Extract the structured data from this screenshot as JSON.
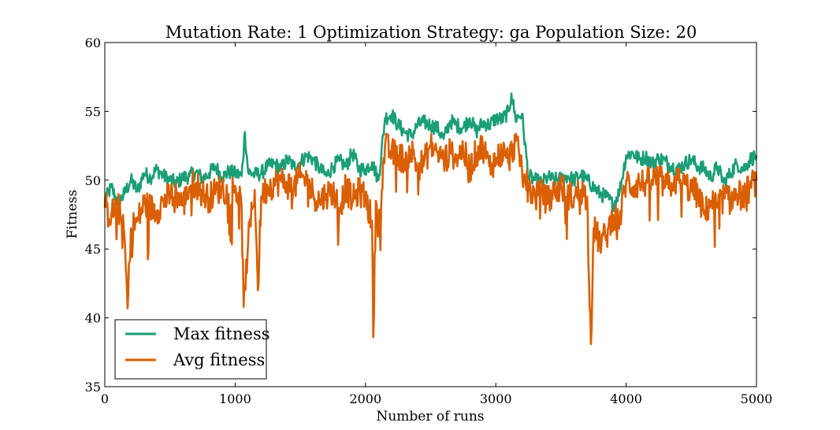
{
  "chart_data": {
    "type": "line",
    "title": "Mutation Rate: 1 Optimization Strategy: ga Population Size: 20",
    "xlabel": "Number of runs",
    "ylabel": "Fitness",
    "xlim": [
      0,
      5000
    ],
    "ylim": [
      35,
      60
    ],
    "xticks": [
      "0",
      "1000",
      "2000",
      "3000",
      "4000",
      "5000"
    ],
    "yticks": [
      "35",
      "40",
      "45",
      "50",
      "55",
      "60"
    ],
    "grid": false,
    "legend_position": "lower-left",
    "series": [
      {
        "name": "Max fitness",
        "color": "#1b9e77",
        "x": [
          0,
          50,
          100,
          150,
          200,
          250,
          300,
          350,
          400,
          450,
          500,
          550,
          600,
          650,
          700,
          750,
          800,
          850,
          900,
          950,
          1000,
          1050,
          1075,
          1100,
          1150,
          1200,
          1250,
          1300,
          1350,
          1400,
          1450,
          1500,
          1550,
          1600,
          1650,
          1700,
          1750,
          1800,
          1850,
          1900,
          1950,
          2000,
          2050,
          2100,
          2150,
          2200,
          2250,
          2300,
          2350,
          2400,
          2450,
          2500,
          2550,
          2600,
          2650,
          2700,
          2750,
          2800,
          2850,
          2900,
          2950,
          3000,
          3050,
          3100,
          3120,
          3150,
          3200,
          3250,
          3300,
          3350,
          3400,
          3450,
          3500,
          3550,
          3600,
          3650,
          3700,
          3750,
          3800,
          3850,
          3900,
          3950,
          4000,
          4050,
          4100,
          4150,
          4200,
          4250,
          4300,
          4350,
          4400,
          4450,
          4500,
          4550,
          4600,
          4650,
          4700,
          4750,
          4800,
          4850,
          4900,
          4950,
          5000
        ],
        "values": [
          48.5,
          49.5,
          48.3,
          49.0,
          50.0,
          49.2,
          50.5,
          50.2,
          50.8,
          50.3,
          50.0,
          49.8,
          50.2,
          50.3,
          50.6,
          50.1,
          50.5,
          51.0,
          50.2,
          50.6,
          50.5,
          50.3,
          53.5,
          50.6,
          50.4,
          50.5,
          51.0,
          51.2,
          50.8,
          51.5,
          51.0,
          51.3,
          51.8,
          51.5,
          50.8,
          50.3,
          51.0,
          51.4,
          51.0,
          52.0,
          50.8,
          50.8,
          51.3,
          50.0,
          54.5,
          54.8,
          54.0,
          53.5,
          53.2,
          54.0,
          54.2,
          54.0,
          53.8,
          53.0,
          54.3,
          54.0,
          53.8,
          54.5,
          53.5,
          54.2,
          54.0,
          54.5,
          54.4,
          55.0,
          56.3,
          54.5,
          54.8,
          50.3,
          50.0,
          49.8,
          50.2,
          50.0,
          50.1,
          50.3,
          50.0,
          50.4,
          50.0,
          49.5,
          49.0,
          48.8,
          48.2,
          49.2,
          51.8,
          52.0,
          51.5,
          51.7,
          51.2,
          51.6,
          51.4,
          51.0,
          50.8,
          51.2,
          51.5,
          51.0,
          50.8,
          50.2,
          51.0,
          49.8,
          50.5,
          51.2,
          50.8,
          51.5,
          51.8
        ]
      },
      {
        "name": "Avg fitness",
        "color": "#d95f02",
        "x": [
          0,
          50,
          100,
          150,
          175,
          200,
          250,
          300,
          350,
          400,
          450,
          500,
          550,
          600,
          650,
          700,
          750,
          800,
          850,
          900,
          950,
          1000,
          1050,
          1065,
          1100,
          1150,
          1175,
          1200,
          1250,
          1300,
          1350,
          1400,
          1450,
          1500,
          1550,
          1600,
          1650,
          1700,
          1750,
          1800,
          1850,
          1900,
          1950,
          2000,
          2050,
          2060,
          2080,
          2100,
          2150,
          2200,
          2250,
          2300,
          2350,
          2400,
          2450,
          2500,
          2550,
          2600,
          2650,
          2700,
          2750,
          2800,
          2850,
          2900,
          2950,
          3000,
          3050,
          3100,
          3150,
          3200,
          3250,
          3300,
          3350,
          3400,
          3450,
          3500,
          3550,
          3600,
          3650,
          3700,
          3730,
          3750,
          3800,
          3850,
          3900,
          3950,
          4000,
          4050,
          4100,
          4150,
          4200,
          4250,
          4300,
          4350,
          4400,
          4450,
          4500,
          4550,
          4600,
          4650,
          4700,
          4750,
          4800,
          4850,
          4900,
          4950,
          5000
        ],
        "values": [
          48.0,
          47.5,
          48.2,
          46.0,
          40.7,
          46.5,
          47.0,
          48.3,
          48.0,
          47.8,
          48.5,
          48.8,
          49.0,
          48.2,
          49.5,
          49.8,
          49.0,
          48.7,
          49.2,
          49.5,
          49.0,
          49.6,
          48.0,
          40.8,
          45.5,
          49.3,
          42.0,
          48.8,
          49.5,
          49.8,
          50.0,
          49.7,
          49.5,
          50.2,
          50.0,
          49.0,
          48.5,
          49.0,
          49.2,
          48.0,
          49.5,
          48.5,
          49.2,
          48.8,
          47.0,
          38.6,
          48.5,
          46.5,
          52.5,
          52.0,
          51.8,
          51.5,
          52.2,
          51.0,
          51.3,
          52.5,
          52.0,
          51.5,
          52.0,
          51.8,
          52.2,
          50.8,
          52.0,
          52.5,
          51.0,
          51.5,
          52.0,
          51.5,
          52.8,
          51.0,
          49.5,
          48.8,
          49.0,
          48.5,
          49.2,
          49.5,
          49.0,
          48.7,
          49.3,
          48.8,
          38.1,
          46.5,
          45.5,
          46.0,
          47.5,
          47.0,
          50.0,
          49.5,
          49.8,
          49.8,
          50.0,
          50.2,
          49.5,
          49.8,
          50.0,
          49.7,
          49.3,
          49.0,
          47.5,
          48.5,
          48.0,
          48.8,
          48.5,
          49.0,
          48.8,
          49.5,
          50.0
        ]
      }
    ]
  }
}
